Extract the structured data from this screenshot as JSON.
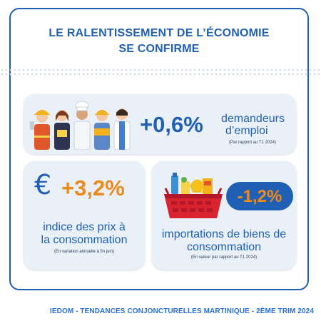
{
  "title": {
    "line1": "LE RALENTISSEMENT DE L’ÉCONOMIE",
    "line2": "SE CONFIRME"
  },
  "card1": {
    "icon": "workers-illustration",
    "value": "+0,6%",
    "label_line1": "demandeurs",
    "label_line2": "d’emploi",
    "note": "(Par rapport au T1 2024)"
  },
  "card2": {
    "icon": "euro-icon",
    "symbol": "€",
    "value": "+3,2%",
    "label_line1": "indice des prix à",
    "label_line2": "la consommation",
    "note": "(En variation annuelle à fin juin)"
  },
  "card3": {
    "icon": "shopping-basket-illustration",
    "value": "-1,2%",
    "label_line1": "importations de biens de",
    "label_line2": "consommation",
    "note": "(En valeur par rapport au T1 2024)"
  },
  "footer": "IEDOM - TENDANCES CONJONCTURELLES MARTINIQUE - 2ÈME TRIM 2024",
  "colors": {
    "blue": "#1f5fb4",
    "orange": "#ee8a1c",
    "card": "#e9f0f8"
  }
}
